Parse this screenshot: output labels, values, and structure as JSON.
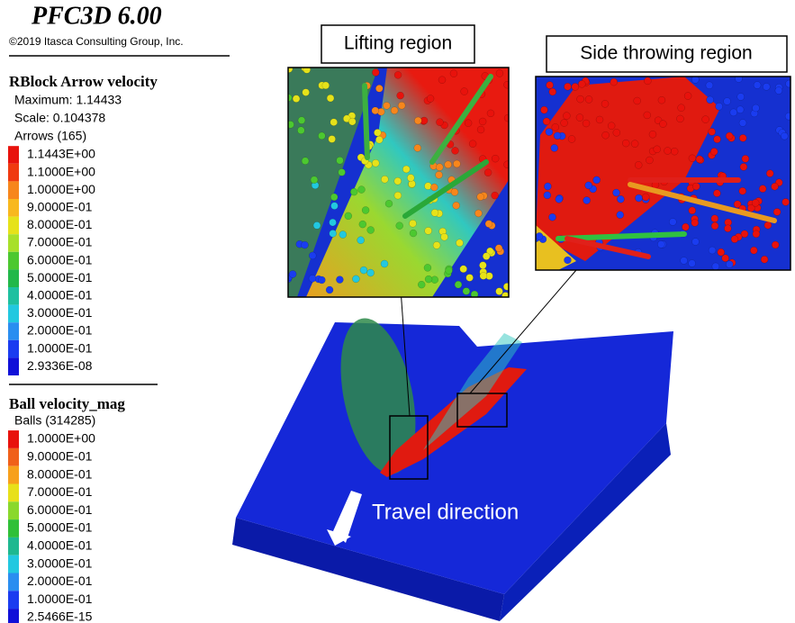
{
  "header": {
    "title": "PFC3D 6.00",
    "copyright": "©2019 Itasca Consulting Group, Inc."
  },
  "legends": [
    {
      "title": "RBlock Arrow velocity",
      "info": [
        "Maximum: 1.14433",
        "Scale: 0.104378",
        "Arrows (165)"
      ],
      "entries": [
        {
          "label": "1.1443E+00",
          "color": "#e8120c"
        },
        {
          "label": "1.1000E+00",
          "color": "#f03a10"
        },
        {
          "label": "1.0000E+00",
          "color": "#f7861c"
        },
        {
          "label": "9.0000E-01",
          "color": "#f8b81e"
        },
        {
          "label": "8.0000E-01",
          "color": "#e6e21a"
        },
        {
          "label": "7.0000E-01",
          "color": "#a8e02a"
        },
        {
          "label": "6.0000E-01",
          "color": "#4cc830"
        },
        {
          "label": "5.0000E-01",
          "color": "#22b84a"
        },
        {
          "label": "4.0000E-01",
          "color": "#1ec0a0"
        },
        {
          "label": "3.0000E-01",
          "color": "#22c8e0"
        },
        {
          "label": "2.0000E-01",
          "color": "#2a8ef0"
        },
        {
          "label": "1.0000E-01",
          "color": "#1a3cf0"
        },
        {
          "label": "2.9336E-08",
          "color": "#1010d8"
        }
      ]
    },
    {
      "title": "Ball velocity_mag",
      "info": [
        "Balls (314285)"
      ],
      "entries": [
        {
          "label": "1.0000E+00",
          "color": "#e8120c"
        },
        {
          "label": "9.0000E-01",
          "color": "#f0601a"
        },
        {
          "label": "8.0000E-01",
          "color": "#f7a01c"
        },
        {
          "label": "7.0000E-01",
          "color": "#e8e01a"
        },
        {
          "label": "6.0000E-01",
          "color": "#8ad82c"
        },
        {
          "label": "5.0000E-01",
          "color": "#30c038"
        },
        {
          "label": "4.0000E-01",
          "color": "#1eb890"
        },
        {
          "label": "3.0000E-01",
          "color": "#22c8e0"
        },
        {
          "label": "2.0000E-01",
          "color": "#2a8ef0"
        },
        {
          "label": "1.0000E-01",
          "color": "#1a3cf0"
        },
        {
          "label": "2.5466E-15",
          "color": "#1010d8"
        }
      ]
    }
  ],
  "annotations": {
    "lifting": "Lifting region",
    "side": "Side throwing region",
    "travel": "Travel direction"
  }
}
